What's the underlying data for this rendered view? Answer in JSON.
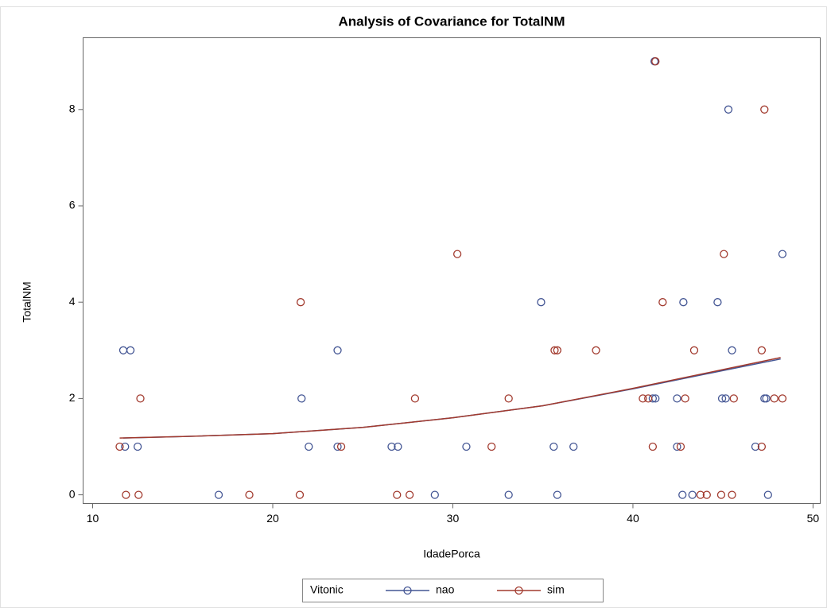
{
  "chart_data": {
    "type": "scatter",
    "title": "Analysis of Covariance for TotalNM",
    "x_label": "IdadePorca",
    "y_label": "TotalNM",
    "legend_title": "Vitonic",
    "xlim": [
      9.47,
      50.4
    ],
    "ylim": [
      -0.18,
      9.49
    ],
    "xticks": [
      10,
      20,
      30,
      40,
      50
    ],
    "yticks": [
      0,
      2,
      4,
      6,
      8
    ],
    "grid": false,
    "series": [
      {
        "name": "nao",
        "color": "#445694",
        "x": [
          11.7,
          12.1,
          11.8,
          12.5,
          17.0,
          21.6,
          22.0,
          23.6,
          23.6,
          26.6,
          26.95,
          29.0,
          30.75,
          33.1,
          34.9,
          35.6,
          35.8,
          36.7,
          41.2,
          41.1,
          41.25,
          42.45,
          42.45,
          42.8,
          42.75,
          43.3,
          44.7,
          44.95,
          45.15,
          45.3,
          45.5,
          46.8,
          47.3,
          47.4,
          47.5,
          48.3
        ],
        "values": [
          3,
          3,
          1,
          1,
          0,
          2,
          1,
          3,
          1,
          1,
          1,
          0,
          1,
          0,
          4,
          1,
          0,
          1,
          9,
          2,
          2,
          2,
          1,
          4,
          0,
          0,
          4,
          2,
          2,
          8,
          3,
          1,
          2,
          2,
          0,
          5
        ],
        "fit_x": [
          11.7,
          15,
          20,
          25,
          30,
          35,
          40,
          45,
          48.2
        ],
        "fit_values": [
          1.18,
          1.21,
          1.27,
          1.4,
          1.6,
          1.85,
          2.2,
          2.58,
          2.82
        ]
      },
      {
        "name": "sim",
        "color": "#a23a2e",
        "x": [
          11.5,
          11.85,
          12.55,
          12.65,
          18.7,
          21.5,
          21.55,
          23.8,
          26.9,
          27.6,
          27.9,
          30.25,
          32.15,
          33.1,
          35.65,
          35.8,
          37.95,
          40.55,
          40.85,
          41.1,
          41.25,
          41.65,
          42.65,
          42.9,
          43.4,
          43.75,
          44.1,
          44.9,
          45.05,
          45.6,
          45.5,
          47.15,
          47.15,
          47.3,
          47.85,
          48.3
        ],
        "values": [
          1,
          0,
          0,
          2,
          0,
          0,
          4,
          1,
          0,
          0,
          2,
          5,
          1,
          2,
          3,
          3,
          3,
          2,
          2,
          1,
          9,
          4,
          1,
          2,
          3,
          0,
          0,
          0,
          5,
          2,
          0,
          3,
          1,
          8,
          2,
          2
        ],
        "fit_x": [
          11.5,
          15,
          20,
          25,
          30,
          35,
          40,
          45,
          48.2
        ],
        "fit_values": [
          1.18,
          1.21,
          1.27,
          1.4,
          1.6,
          1.85,
          2.21,
          2.6,
          2.85
        ]
      }
    ]
  }
}
